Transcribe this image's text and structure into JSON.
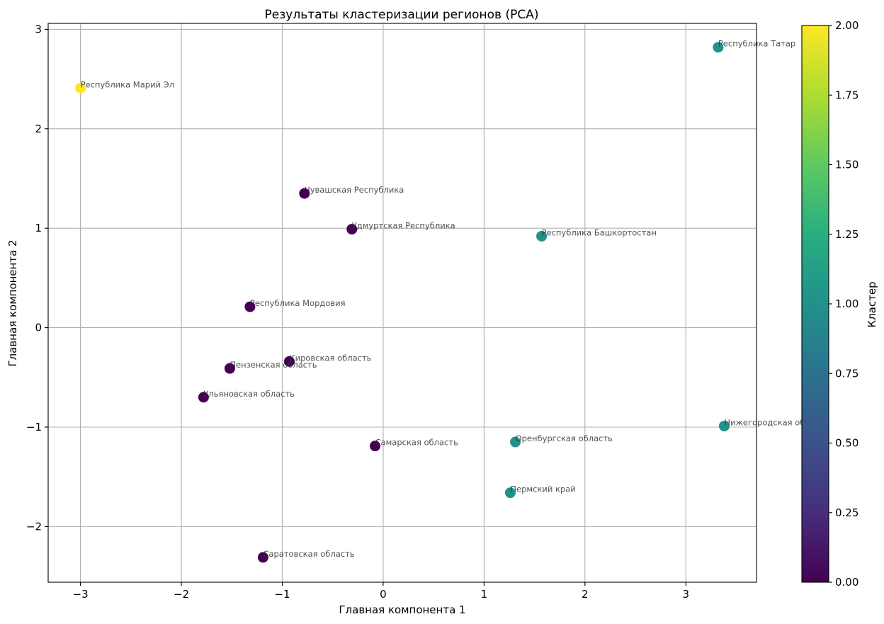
{
  "chart_data": {
    "type": "scatter",
    "title": "Результаты кластеризации регионов (PCA)",
    "xlabel": "Главная компонента 1",
    "ylabel": "Главная компонента 2",
    "xlim": [
      -3.32,
      3.7
    ],
    "ylim": [
      -2.56,
      3.06
    ],
    "xticks": [
      -3,
      -2,
      -1,
      0,
      1,
      2,
      3
    ],
    "xtick_labels": [
      "−3",
      "−2",
      "−1",
      "0",
      "1",
      "2",
      "3"
    ],
    "yticks": [
      -2,
      -1,
      0,
      1,
      2,
      3
    ],
    "ytick_labels": [
      "−2",
      "−1",
      "0",
      "1",
      "2",
      "3"
    ],
    "grid": true,
    "colormap": "viridis",
    "colorbar": {
      "label": "Кластер",
      "min": 0.0,
      "max": 2.0,
      "ticks": [
        0.0,
        0.25,
        0.5,
        0.75,
        1.0,
        1.25,
        1.5,
        1.75,
        2.0
      ],
      "tick_labels": [
        "0.00",
        "0.25",
        "0.50",
        "0.75",
        "1.00",
        "1.25",
        "1.50",
        "1.75",
        "2.00"
      ]
    },
    "cluster_colors": {
      "0": "#440154",
      "1": "#21918c",
      "2": "#fde725"
    },
    "points": [
      {
        "label": "Республика Марий Эл",
        "x": -3.0,
        "y": 2.41,
        "cluster": 2
      },
      {
        "label": "Республика Татар",
        "x": 3.32,
        "y": 2.82,
        "cluster": 1
      },
      {
        "label": "Чувашская Республика",
        "x": -0.78,
        "y": 1.35,
        "cluster": 0
      },
      {
        "label": "Удмуртская Республика",
        "x": -0.31,
        "y": 0.99,
        "cluster": 0
      },
      {
        "label": "Республика Башкортостан",
        "x": 1.57,
        "y": 0.92,
        "cluster": 1
      },
      {
        "label": "Республика Мордовия",
        "x": -1.32,
        "y": 0.21,
        "cluster": 0
      },
      {
        "label": "Кировская область",
        "x": -0.93,
        "y": -0.34,
        "cluster": 0
      },
      {
        "label": "Пензенская область",
        "x": -1.52,
        "y": -0.41,
        "cluster": 0
      },
      {
        "label": "Ульяновская область",
        "x": -1.78,
        "y": -0.7,
        "cluster": 0
      },
      {
        "label": "Нижегородская область",
        "x": 3.38,
        "y": -0.99,
        "cluster": 1
      },
      {
        "label": "Оренбургская область",
        "x": 1.31,
        "y": -1.15,
        "cluster": 1
      },
      {
        "label": "Самарская область",
        "x": -0.08,
        "y": -1.19,
        "cluster": 0
      },
      {
        "label": "Пермский край",
        "x": 1.26,
        "y": -1.66,
        "cluster": 1
      },
      {
        "label": "Саратовская область",
        "x": -1.19,
        "y": -2.31,
        "cluster": 0
      }
    ]
  }
}
